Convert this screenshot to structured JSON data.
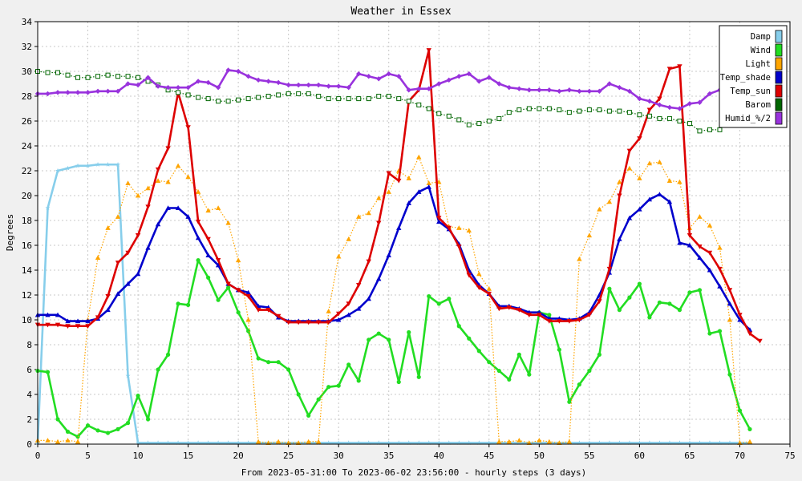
{
  "chart_data": {
    "type": "line",
    "title": "Weather in Essex",
    "xlabel": "From 2023-05-31:00 To 2023-06-02 23:56:00 - hourly steps (3 days)",
    "ylabel": "Degrees",
    "xlim": [
      0,
      75
    ],
    "ylim": [
      0,
      34
    ],
    "xticks": [
      0,
      5,
      10,
      15,
      20,
      25,
      30,
      35,
      40,
      45,
      50,
      55,
      60,
      65,
      70,
      75
    ],
    "yticks": [
      0,
      2,
      4,
      6,
      8,
      10,
      12,
      14,
      16,
      18,
      20,
      22,
      24,
      26,
      28,
      30,
      32,
      34
    ],
    "grid": true,
    "legend_position": "top-right",
    "series": [
      {
        "name": "Damp",
        "color": "#87ceeb",
        "style": "solid",
        "marker": "star",
        "values": [
          0.1,
          19,
          22,
          22.2,
          22.4,
          22.4,
          22.5,
          22.5,
          22.5,
          5.5,
          0.1,
          0.1,
          0.1,
          0.1,
          0.1,
          0.1,
          0.1,
          0.1,
          0.1,
          0.1,
          0.1,
          0.1,
          0.1,
          0.1,
          0.1,
          0.1,
          0.1,
          0.1,
          0.1,
          0.1,
          0.1,
          0.1,
          0.1,
          0.1,
          0.1,
          0.1,
          0.1,
          0.1,
          0.1,
          0.1,
          0.1,
          0.1,
          0.1,
          0.1,
          0.1,
          0.1,
          0.1,
          0.1,
          0.1,
          0.1,
          0.1,
          0.1,
          0.1,
          0.1,
          0.1,
          0.1,
          0.1,
          0.1,
          0.1,
          0.1,
          0.1,
          0.1,
          0.1,
          0.1,
          0.1,
          0.1,
          0.1,
          0.1,
          0.1,
          0.1,
          0.1,
          0.1
        ]
      },
      {
        "name": "Wind",
        "color": "#22dd22",
        "style": "solid",
        "marker": "circle",
        "values": [
          5.9,
          5.8,
          2,
          1,
          0.6,
          1.5,
          1.1,
          0.9,
          1.2,
          1.7,
          3.9,
          2,
          6,
          7.2,
          11.3,
          11.2,
          14.8,
          13.4,
          11.6,
          12.6,
          10.6,
          9.1,
          6.9,
          6.6,
          6.6,
          6,
          4,
          2.3,
          3.6,
          4.6,
          4.7,
          6.4,
          5.1,
          8.4,
          8.9,
          8.4,
          5,
          9,
          5.4,
          11.9,
          11.3,
          11.7,
          9.5,
          8.5,
          7.5,
          6.6,
          5.9,
          5.2,
          7.2,
          5.6,
          10.6,
          10.4,
          7.6,
          3.4,
          4.8,
          5.9,
          7.2,
          12.5,
          10.8,
          11.8,
          12.9,
          10.2,
          11.4,
          11.3,
          10.8,
          12.2,
          12.4,
          8.9,
          9.1,
          5.6,
          2.7,
          1.2
        ]
      },
      {
        "name": "Light",
        "color": "#ffa500",
        "style": "dotted",
        "marker": "triangle-up",
        "values": [
          0.3,
          0.3,
          0.2,
          0.3,
          0.2,
          10,
          15,
          17.4,
          18.3,
          21,
          20,
          20.6,
          21.2,
          21.1,
          22.4,
          21.5,
          20.3,
          18.8,
          19,
          17.8,
          14.8,
          10,
          0.2,
          0.1,
          0.2,
          0.1,
          0.1,
          0.2,
          0.2,
          10.7,
          15.1,
          16.5,
          18.3,
          18.6,
          19.8,
          20.3,
          22,
          21.4,
          23.1,
          21,
          21.1,
          17.5,
          17.4,
          17.2,
          13.7,
          12.5,
          0.2,
          0.2,
          0.3,
          0.1,
          0.3,
          0.2,
          0.1,
          0.2,
          14.9,
          16.8,
          18.9,
          19.5,
          21.1,
          22.2,
          21.4,
          22.6,
          22.7,
          21.2,
          21.1,
          17.4,
          18.3,
          17.6,
          15.8,
          10,
          0.1,
          0.2
        ]
      },
      {
        "name": "Temp_shade",
        "color": "#0000cc",
        "style": "solid",
        "marker": "triangle-up",
        "values": [
          10.4,
          10.4,
          10.4,
          9.9,
          9.9,
          9.9,
          10.1,
          10.8,
          12.1,
          12.9,
          13.7,
          15.8,
          17.7,
          19,
          19,
          18.3,
          16.6,
          15.2,
          14.4,
          12.9,
          12.4,
          12.2,
          11.1,
          11,
          10.2,
          9.9,
          9.9,
          9.9,
          9.9,
          9.9,
          10,
          10.4,
          10.9,
          11.7,
          13.3,
          15.2,
          17.4,
          19.4,
          20.3,
          20.7,
          17.9,
          17.3,
          16.1,
          14,
          12.8,
          12.1,
          11.1,
          11.1,
          10.9,
          10.6,
          10.6,
          10.1,
          10.1,
          10,
          10.1,
          10.6,
          12,
          13.8,
          16.5,
          18.2,
          18.9,
          19.7,
          20.1,
          19.5,
          16.2,
          16,
          15,
          14,
          12.7,
          11.3,
          10,
          9.2
        ]
      },
      {
        "name": "Temp_sun",
        "color": "#dd0000",
        "style": "solid",
        "marker": "triangle-down",
        "values": [
          9.6,
          9.6,
          9.6,
          9.5,
          9.5,
          9.5,
          10.2,
          11.9,
          14.6,
          15.4,
          16.8,
          19.1,
          22.1,
          23.8,
          28.3,
          25.5,
          17.9,
          16.5,
          14.8,
          12.9,
          12.4,
          11.9,
          10.8,
          10.8,
          10.3,
          9.8,
          9.8,
          9.8,
          9.8,
          9.8,
          10.5,
          11.3,
          12.8,
          14.7,
          17.8,
          21.8,
          21.2,
          27.6,
          28.5,
          31.7,
          18.2,
          17.4,
          15.9,
          13.6,
          12.6,
          12.1,
          10.9,
          11,
          10.8,
          10.4,
          10.4,
          9.9,
          9.9,
          9.9,
          10,
          10.4,
          11.5,
          14.1,
          20,
          23.6,
          24.6,
          26.9,
          27.8,
          30.2,
          30.4,
          16.8,
          15.9,
          15.4,
          14.1,
          12.4,
          10.4,
          8.9,
          8.3
        ]
      },
      {
        "name": "Barom",
        "color": "#006600",
        "style": "dotted",
        "marker": "square",
        "values": [
          30,
          29.9,
          29.9,
          29.7,
          29.5,
          29.5,
          29.6,
          29.7,
          29.6,
          29.6,
          29.5,
          29.2,
          28.9,
          28.5,
          28.3,
          28.1,
          27.9,
          27.8,
          27.6,
          27.6,
          27.7,
          27.8,
          27.9,
          28,
          28.1,
          28.2,
          28.2,
          28.2,
          28,
          27.8,
          27.8,
          27.8,
          27.8,
          27.8,
          28,
          28,
          27.8,
          27.6,
          27.3,
          27,
          26.6,
          26.4,
          26.1,
          25.7,
          25.8,
          26,
          26.2,
          26.7,
          26.9,
          27,
          27,
          27,
          26.9,
          26.7,
          26.8,
          26.9,
          26.9,
          26.8,
          26.8,
          26.7,
          26.5,
          26.4,
          26.2,
          26.2,
          26,
          25.8,
          25.2,
          25.3,
          25.3
        ]
      },
      {
        "name": "Humid_%/2",
        "color": "#9933dd",
        "style": "solid",
        "marker": "diamond",
        "values": [
          28.2,
          28.2,
          28.3,
          28.3,
          28.3,
          28.3,
          28.4,
          28.4,
          28.4,
          29,
          28.9,
          29.5,
          28.8,
          28.7,
          28.7,
          28.7,
          29.2,
          29.1,
          28.7,
          30.1,
          30,
          29.6,
          29.3,
          29.2,
          29.1,
          28.9,
          28.9,
          28.9,
          28.9,
          28.8,
          28.8,
          28.7,
          29.8,
          29.6,
          29.4,
          29.8,
          29.6,
          28.5,
          28.6,
          28.6,
          29,
          29.3,
          29.6,
          29.8,
          29.2,
          29.5,
          29,
          28.7,
          28.6,
          28.5,
          28.5,
          28.5,
          28.4,
          28.5,
          28.4,
          28.4,
          28.4,
          29,
          28.7,
          28.4,
          27.8,
          27.6,
          27.3,
          27.1,
          27,
          27.4,
          27.5,
          28.2,
          28.5,
          28.8
        ]
      }
    ]
  }
}
